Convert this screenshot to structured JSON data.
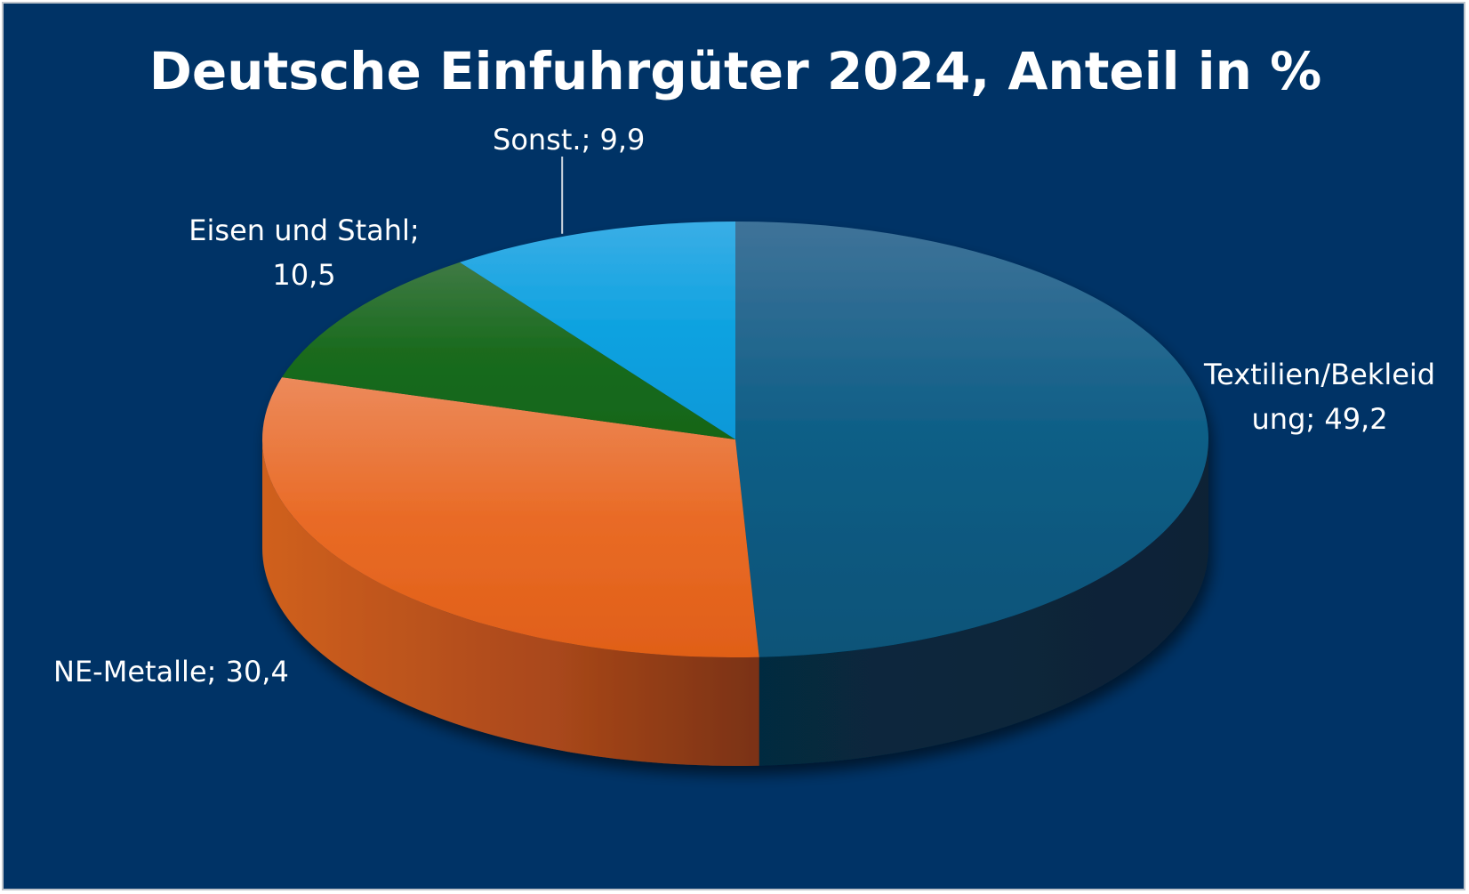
{
  "chart_data": {
    "type": "pie",
    "style": "3d-exploded-none",
    "title": "Deutsche Einfuhrgüter 2024, Anteil in %",
    "slices": [
      {
        "name": "Textilien/Bekleidung",
        "value": 49.2,
        "label_line1": "Textilien/Bekleid",
        "label_line2": "ung; 49,2",
        "color": "#0b5a80"
      },
      {
        "name": "NE-Metalle",
        "value": 30.4,
        "label_line1": "NE-Metalle; 30,4",
        "label_line2": "",
        "color": "#e8641e"
      },
      {
        "name": "Eisen und Stahl",
        "value": 10.5,
        "label_line1": "Eisen und Stahl;",
        "label_line2": "10,5",
        "color": "#1a6b1e"
      },
      {
        "name": "Sonst.",
        "value": 9.9,
        "label_line1": "Sonst.; 9,9",
        "label_line2": "",
        "color": "#0a9ede"
      }
    ],
    "background_color": "#003366",
    "legend": "none",
    "data_labels": "outside"
  }
}
